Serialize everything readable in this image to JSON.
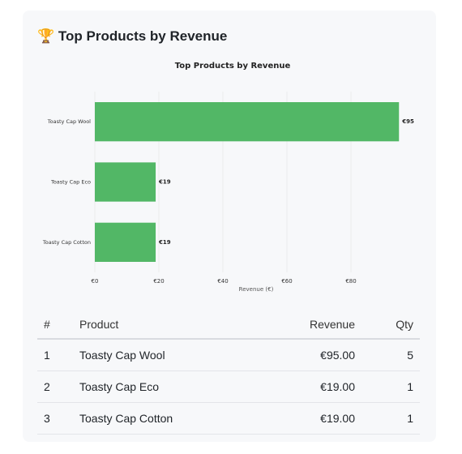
{
  "card": {
    "title": "🏆 Top Products by Revenue"
  },
  "chart_data": {
    "type": "barh",
    "title": "Top Products by Revenue",
    "categories": [
      "Toasty Cap Wool",
      "Toasty Cap Eco",
      "Toasty Cap Cotton"
    ],
    "values": [
      95,
      19,
      19
    ],
    "value_labels": [
      "€95",
      "€19",
      "€19"
    ],
    "color": "#52b766",
    "xlim": [
      0,
      100
    ],
    "xticks": [
      {
        "value": 0,
        "label": "€0"
      },
      {
        "value": 20,
        "label": "€20"
      },
      {
        "value": 40,
        "label": "€40"
      },
      {
        "value": 60,
        "label": "€60"
      },
      {
        "value": 80,
        "label": "€80"
      }
    ],
    "xlabel": "Revenue (€)",
    "grid": true
  },
  "table": {
    "headers": [
      "#",
      "Product",
      "Revenue",
      "Qty"
    ],
    "rows": [
      [
        1,
        "Toasty Cap Wool",
        "€95.00",
        5
      ],
      [
        2,
        "Toasty Cap Eco",
        "€19.00",
        1
      ],
      [
        3,
        "Toasty Cap Cotton",
        "€19.00",
        1
      ]
    ]
  }
}
